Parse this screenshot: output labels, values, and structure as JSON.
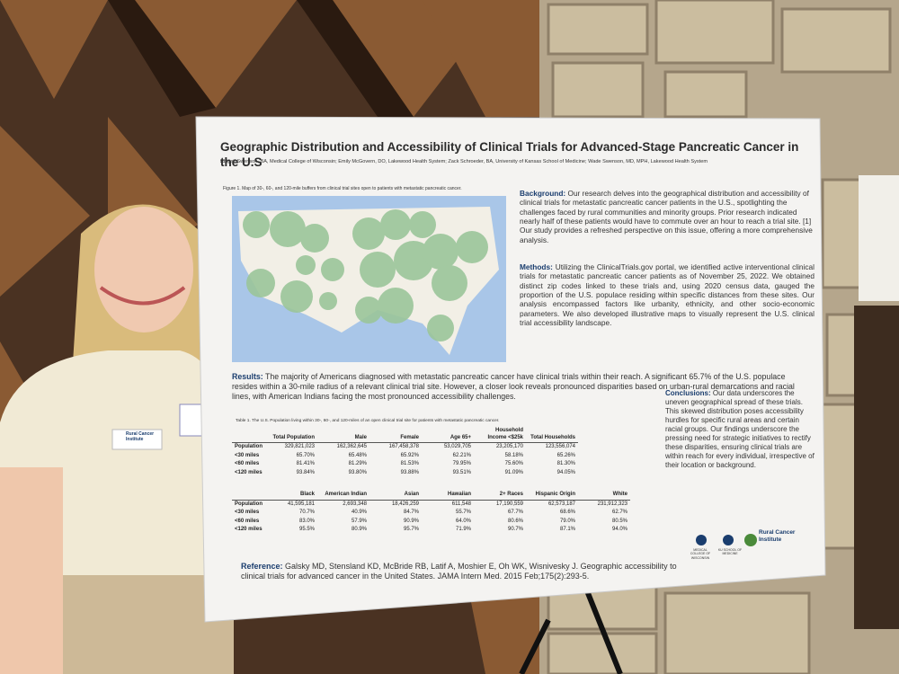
{
  "poster": {
    "title": "Geographic Distribution and Accessibility of Clinical Trials for Advanced-Stage Pancreatic Cancer in the U.S",
    "authors": "Abigail Swenson, BA, Medical College of Wisconsin; Emily McGovern, DO, Lakewood Health System; Zack Schroeder, BA, University of Kansas School of Medicine; Wade Swenson, MD, MPH, Lakewood Health System",
    "figure_caption": "Figure 1. Map of 30-, 60-, and 120-mile buffers from clinical trial sites open to patients with metastatic pancreatic cancer.",
    "background": {
      "heading": "Background:",
      "text": "Our research delves into the geographical distribution and accessibility of clinical trials for metastatic pancreatic cancer patients in the U.S., spotlighting the challenges faced by rural communities and minority groups. Prior research indicated nearly half of these patients would have to commute over an hour to reach a trial site. [1] Our study provides a refreshed perspective on this issue, offering a more comprehensive analysis."
    },
    "methods": {
      "heading": "Methods:",
      "text": "Utilizing the ClinicalTrials.gov portal, we identified active interventional clinical trials for metastatic pancreatic cancer patients as of November 25, 2022. We obtained distinct zip codes linked to these trials and, using 2020 census data, gauged the proportion of the U.S. populace residing within specific distances from these sites. Our analysis encompassed factors like urbanity, ethnicity, and other socio-economic parameters. We also developed illustrative maps to visually represent the U.S. clinical trial accessibility landscape."
    },
    "results": {
      "heading": "Results:",
      "text": "The majority of Americans diagnosed with metastatic pancreatic cancer have clinical trials within their reach. A significant 65.7% of the U.S. populace resides within a 30-mile radius of a relevant clinical trial site. However, a closer look reveals pronounced disparities based on urban-rural demarcations and racial lines, with American Indians facing the most pronounced accessibility challenges."
    },
    "conclusions": {
      "heading": "Conclusions:",
      "text": "Our data underscores the uneven geographical spread of these trials. This skewed distribution poses accessibility hurdles for specific rural areas and certain racial groups. Our findings underscore the pressing need for strategic initiatives to rectify these disparities, ensuring clinical trials are within reach for every individual, irrespective of their location or background."
    },
    "table_caption": "Table 1. The U.S. Population living within 30-, 60-, and 120-miles of an open clinical trial site for patients with metastatic pancreatic cancer.",
    "table_1": {
      "columns": [
        "Total Population",
        "Male",
        "Female",
        "Age 65+",
        "Household Income <$25k",
        "Total Households"
      ],
      "rows": [
        {
          "label": "Population",
          "cells": [
            "329,821,023",
            "162,362,645",
            "167,458,378",
            "53,029,705",
            "23,205,170",
            "123,556,074"
          ]
        },
        {
          "label": "<30 miles",
          "cells": [
            "65.70%",
            "65.48%",
            "65.92%",
            "62.21%",
            "58.18%",
            "65.26%"
          ]
        },
        {
          "label": "<60 miles",
          "cells": [
            "81.41%",
            "81.29%",
            "81.53%",
            "79.95%",
            "75.60%",
            "81.30%"
          ]
        },
        {
          "label": "<120 miles",
          "cells": [
            "93.84%",
            "93.80%",
            "93.88%",
            "93.51%",
            "91.09%",
            "94.05%"
          ]
        }
      ]
    },
    "table_2": {
      "columns": [
        "Black",
        "American Indian",
        "Asian",
        "Hawaiian",
        "2+ Races",
        "Hispanic Origin",
        "White"
      ],
      "rows": [
        {
          "label": "Population",
          "cells": [
            "41,595,181",
            "2,693,348",
            "18,426,259",
            "611,548",
            "17,190,559",
            "62,573,187",
            "231,912,323"
          ]
        },
        {
          "label": "<30 miles",
          "cells": [
            "70.7%",
            "40.9%",
            "84.7%",
            "55.7%",
            "67.7%",
            "68.6%",
            "62.7%"
          ]
        },
        {
          "label": "<60 miles",
          "cells": [
            "83.0%",
            "57.9%",
            "90.9%",
            "64.0%",
            "80.6%",
            "79.0%",
            "80.5%"
          ]
        },
        {
          "label": "<120 miles",
          "cells": [
            "95.5%",
            "80.9%",
            "95.7%",
            "71.9%",
            "90.7%",
            "87.1%",
            "94.0%"
          ]
        }
      ]
    },
    "reference": {
      "heading": "Reference:",
      "text": "Galsky MD, Stensland KD, McBride RB, Latif A, Moshier E, Oh WK, Wisnivesky J. Geographic accessibility to clinical trials for advanced cancer in the United States. JAMA Intern Med. 2015 Feb;175(2):293-5."
    },
    "logos": [
      "MEDICAL COLLEGE OF WISCONSIN",
      "KU SCHOOL OF MEDICINE",
      "Rural Cancer Institute"
    ]
  },
  "name_badge": "Rural Cancer Institute"
}
